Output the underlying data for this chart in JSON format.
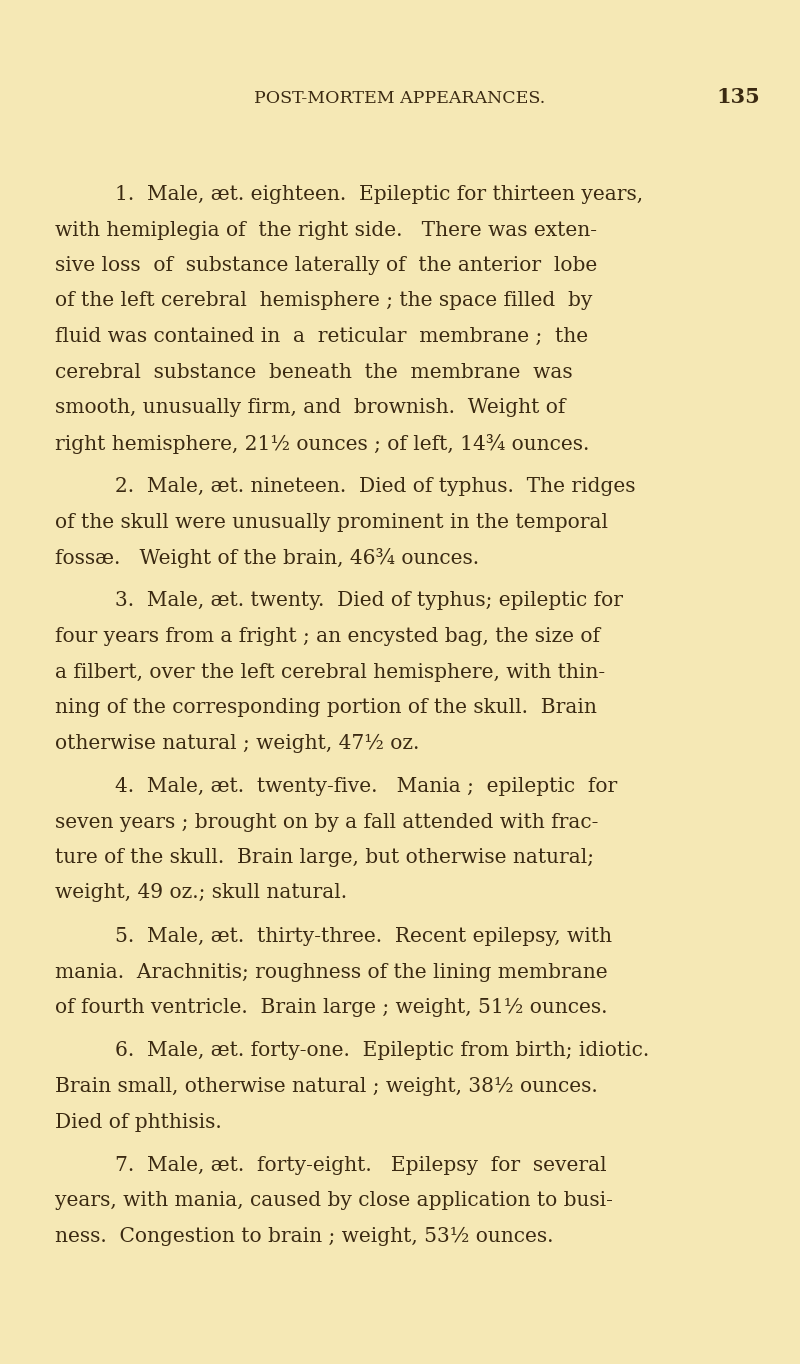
{
  "background_color": "#F5E8B5",
  "text_color": "#3B2A12",
  "fig_width": 8.0,
  "fig_height": 13.64,
  "dpi": 100,
  "header_text": "POST-MORTEM APPEARANCES.",
  "page_number": "135",
  "header_fontsize": 12.5,
  "page_num_fontsize": 15.0,
  "body_fontsize": 14.5,
  "paragraphs": [
    {
      "indent": true,
      "lines": [
        "1.  Male, æt. eighteen.  Epileptic for thirteen years,",
        "with hemiplegia of  the right side.   There was exten-",
        "sive loss  of  substance laterally of  the anterior  lobe",
        "of the left cerebral  hemisphere ; the space filled  by",
        "fluid was contained in  a  reticular  membrane ;  the",
        "cerebral  substance  beneath  the  membrane  was",
        "smooth, unusually firm, and  brownish.  Weight of",
        "right hemisphere, 21½ ounces ; of left, 14¾ ounces."
      ]
    },
    {
      "indent": true,
      "lines": [
        "2.  Male, æt. nineteen.  Died of typhus.  The ridges",
        "of the skull were unusually prominent in the temporal",
        "fossæ.   Weight of the brain, 46¾ ounces."
      ]
    },
    {
      "indent": true,
      "lines": [
        "3.  Male, æt. twenty.  Died of typhus; epileptic for",
        "four years from a fright ; an encysted bag, the size of",
        "a filbert, over the left cerebral hemisphere, with thin-",
        "ning of the corresponding portion of the skull.  Brain",
        "otherwise natural ; weight, 47½ oz."
      ]
    },
    {
      "indent": true,
      "lines": [
        "4.  Male, æt.  twenty-five.   Mania ;  epileptic  for",
        "seven years ; brought on by a fall attended with frac-",
        "ture of the skull.  Brain large, but otherwise natural;",
        "weight, 49 oz.; skull natural."
      ]
    },
    {
      "indent": true,
      "lines": [
        "5.  Male, æt.  thirty-three.  Recent epilepsy, with",
        "mania.  Arachnitis; roughness of the lining membrane",
        "of fourth ventricle.  Brain large ; weight, 51½ ounces."
      ]
    },
    {
      "indent": true,
      "lines": [
        "6.  Male, æt. forty-one.  Epileptic from birth; idiotic.",
        "Brain small, otherwise natural ; weight, 38½ ounces.",
        "Died of phthisis."
      ]
    },
    {
      "indent": true,
      "lines": [
        "7.  Male, æt.  forty-eight.   Epilepsy  for  several",
        "years, with mania, caused by close application to busi-",
        "ness.  Congestion to brain ; weight, 53½ ounces."
      ]
    }
  ]
}
